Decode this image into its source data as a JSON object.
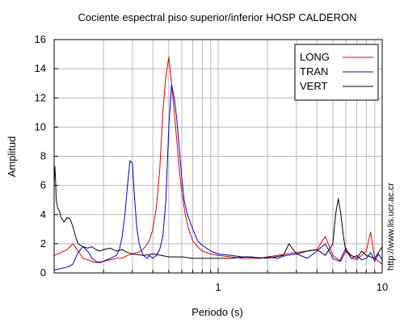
{
  "chart_data": {
    "type": "line",
    "title": "Cociente espectral piso superior/inferior  HOSP CALDERON",
    "xlabel": "Periodo (s)",
    "ylabel": "Amplitud",
    "xscale": "log",
    "xlim": [
      0.1,
      10
    ],
    "ylim": [
      0,
      16
    ],
    "grid": true,
    "legend_position": "top-right",
    "y_ticks": [
      "0",
      "2",
      "4",
      "6",
      "8",
      "10",
      "12",
      "14",
      "16"
    ],
    "x_tick_labels": [
      {
        "value": 1,
        "label": "1"
      },
      {
        "value": 10,
        "label": "10"
      }
    ],
    "series": [
      {
        "name": "LONG",
        "color": "#e00000",
        "x": [
          0.1,
          0.105,
          0.11,
          0.115,
          0.12,
          0.125,
          0.13,
          0.14,
          0.15,
          0.16,
          0.17,
          0.18,
          0.19,
          0.2,
          0.22,
          0.24,
          0.26,
          0.28,
          0.3,
          0.32,
          0.34,
          0.36,
          0.38,
          0.4,
          0.42,
          0.44,
          0.46,
          0.48,
          0.5,
          0.52,
          0.54,
          0.56,
          0.58,
          0.6,
          0.63,
          0.66,
          0.7,
          0.75,
          0.8,
          0.9,
          1.0,
          1.2,
          1.4,
          1.6,
          1.8,
          2.0,
          2.3,
          2.6,
          3.0,
          3.5,
          4.0,
          4.5,
          5.0,
          5.3,
          5.6,
          6.0,
          6.5,
          7.0,
          7.5,
          8.0,
          8.5,
          9.0,
          9.5,
          10.0
        ],
        "y": [
          1.2,
          1.3,
          1.4,
          1.5,
          1.6,
          1.8,
          2.0,
          1.5,
          1.0,
          0.9,
          0.8,
          0.7,
          0.75,
          0.8,
          0.9,
          1.0,
          1.0,
          1.2,
          1.3,
          1.4,
          1.5,
          1.8,
          2.2,
          3.0,
          4.5,
          7.0,
          11.0,
          13.5,
          14.8,
          13.0,
          11.0,
          9.0,
          7.0,
          5.5,
          4.0,
          3.0,
          2.2,
          1.8,
          1.5,
          1.3,
          1.2,
          1.1,
          1.0,
          1.0,
          1.0,
          1.1,
          1.2,
          1.3,
          1.4,
          1.5,
          1.6,
          2.5,
          1.2,
          1.0,
          0.8,
          1.5,
          1.0,
          0.9,
          1.2,
          1.5,
          2.8,
          1.0,
          0.8,
          0.6
        ]
      },
      {
        "name": "TRAN",
        "color": "#0000d0",
        "x": [
          0.1,
          0.105,
          0.11,
          0.115,
          0.12,
          0.125,
          0.13,
          0.14,
          0.15,
          0.16,
          0.17,
          0.18,
          0.19,
          0.2,
          0.21,
          0.22,
          0.23,
          0.24,
          0.25,
          0.26,
          0.27,
          0.28,
          0.29,
          0.3,
          0.31,
          0.32,
          0.33,
          0.34,
          0.35,
          0.36,
          0.37,
          0.38,
          0.4,
          0.42,
          0.44,
          0.46,
          0.48,
          0.5,
          0.52,
          0.54,
          0.56,
          0.58,
          0.6,
          0.62,
          0.65,
          0.7,
          0.75,
          0.8,
          0.9,
          1.0,
          1.2,
          1.4,
          1.6,
          1.8,
          2.0,
          2.3,
          2.6,
          3.0,
          3.5,
          4.0,
          4.5,
          5.0,
          5.5,
          6.0,
          6.5,
          7.0,
          7.5,
          8.0,
          8.5,
          9.0,
          9.5,
          10.0
        ],
        "y": [
          0.2,
          0.25,
          0.3,
          0.35,
          0.4,
          0.5,
          0.6,
          1.4,
          1.8,
          1.5,
          1.0,
          0.8,
          0.7,
          0.8,
          0.9,
          1.0,
          1.1,
          1.2,
          1.6,
          2.5,
          4.0,
          6.0,
          7.7,
          7.5,
          5.0,
          3.0,
          2.0,
          1.5,
          1.2,
          1.1,
          1.0,
          1.2,
          1.0,
          1.2,
          1.6,
          2.5,
          5.0,
          10.0,
          12.9,
          12.0,
          10.5,
          8.5,
          6.5,
          5.0,
          4.0,
          3.0,
          2.2,
          1.9,
          1.5,
          1.3,
          1.2,
          1.1,
          1.1,
          1.0,
          1.1,
          1.0,
          1.2,
          1.3,
          1.0,
          1.5,
          2.0,
          1.0,
          0.8,
          1.7,
          1.0,
          1.2,
          0.9,
          1.0,
          1.4,
          0.8,
          1.3,
          0.9
        ]
      },
      {
        "name": "VERT",
        "color": "#000000",
        "x": [
          0.1,
          0.101,
          0.102,
          0.103,
          0.105,
          0.108,
          0.11,
          0.115,
          0.12,
          0.125,
          0.13,
          0.135,
          0.14,
          0.15,
          0.16,
          0.17,
          0.18,
          0.19,
          0.2,
          0.22,
          0.24,
          0.26,
          0.28,
          0.3,
          0.35,
          0.4,
          0.45,
          0.5,
          0.6,
          0.7,
          0.8,
          1.0,
          1.2,
          1.5,
          2.0,
          2.5,
          2.7,
          3.0,
          3.5,
          4.0,
          4.5,
          5.0,
          5.2,
          5.4,
          5.6,
          5.8,
          6.0,
          6.5,
          7.0,
          7.5,
          8.0,
          9.0,
          10.0
        ],
        "y": [
          6.0,
          7.3,
          6.5,
          5.0,
          4.5,
          4.2,
          3.8,
          3.5,
          3.8,
          3.7,
          3.2,
          2.5,
          2.0,
          1.8,
          1.7,
          1.8,
          1.6,
          1.5,
          1.6,
          1.7,
          1.5,
          1.6,
          1.4,
          1.3,
          1.2,
          1.3,
          1.2,
          1.1,
          1.1,
          1.0,
          1.0,
          1.0,
          1.0,
          1.1,
          1.0,
          1.2,
          2.0,
          1.3,
          1.5,
          1.6,
          1.2,
          2.0,
          4.0,
          5.1,
          4.0,
          2.5,
          1.5,
          1.2,
          1.0,
          1.5,
          1.2,
          1.0,
          1.8
        ]
      }
    ]
  },
  "side_note": "http://www.lis.ucr.ac.cr"
}
